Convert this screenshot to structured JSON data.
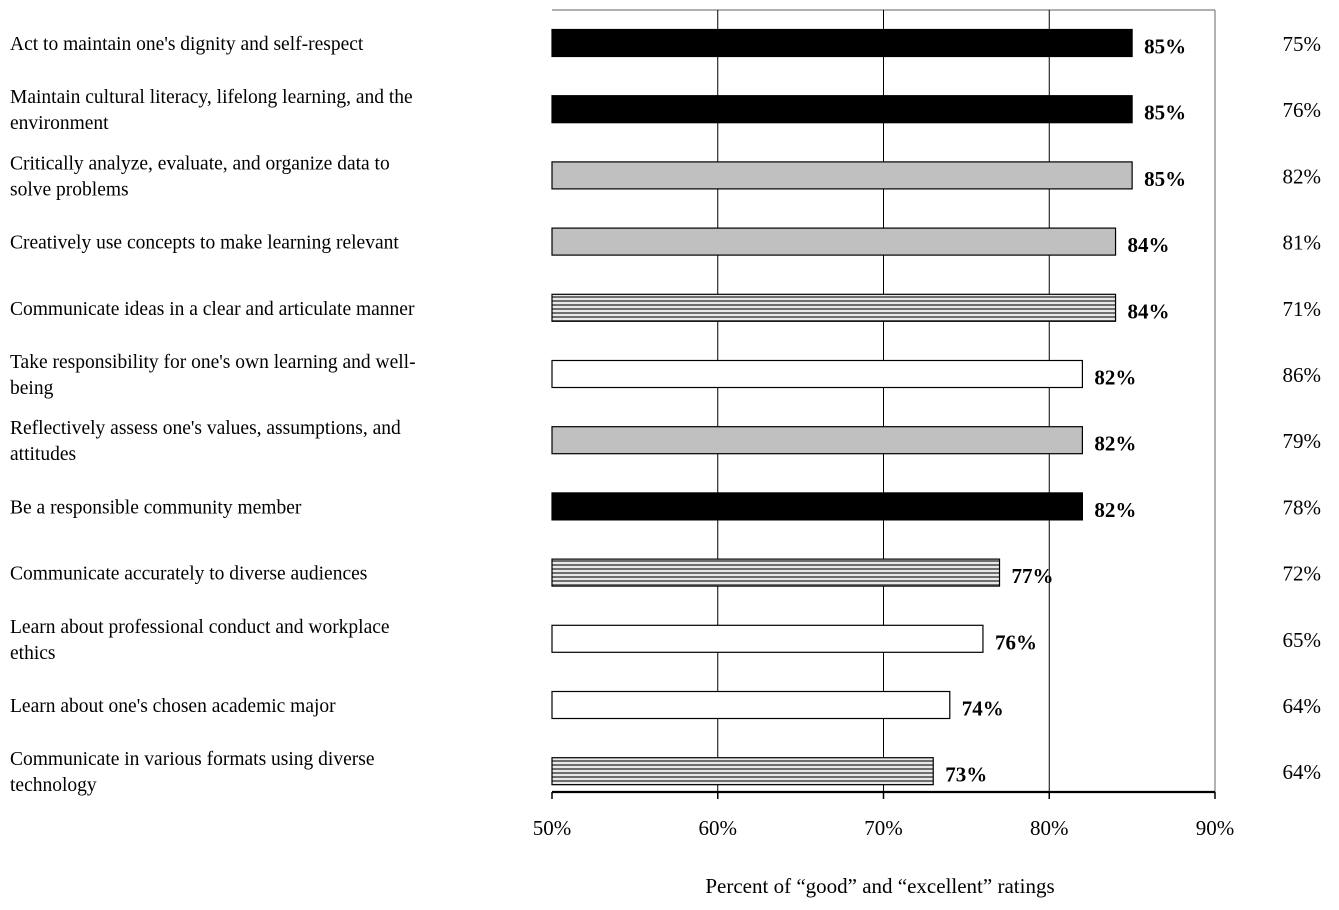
{
  "chart_data": {
    "type": "bar",
    "orientation": "horizontal",
    "xlabel": "Percent of “good” and “excellent” ratings",
    "xlim": [
      50,
      90
    ],
    "xticks": [
      "50%",
      "60%",
      "70%",
      "80%",
      "90%"
    ],
    "grid": true,
    "categories": [
      "Act to maintain one's dignity and self-respect",
      "Maintain cultural literacy, lifelong learning, and the environment",
      "Critically analyze, evaluate, and organize data to solve problems",
      "Creatively use concepts to make learning relevant",
      "Communicate ideas in a clear and articulate manner",
      "Take responsibility for one's own learning and well-being",
      "Reflectively assess one's values, assumptions, and attitudes",
      "Be a responsible community member",
      "Communicate accurately to diverse audiences",
      "Learn about professional conduct and workplace ethics",
      "Learn about one's chosen academic major",
      "Communicate in various formats using diverse technology"
    ],
    "category_lines": [
      [
        "Act to maintain one's dignity and self-respect"
      ],
      [
        "Maintain cultural literacy, lifelong learning, and the",
        "environment"
      ],
      [
        "Critically analyze, evaluate, and organize data to",
        "solve problems"
      ],
      [
        "Creatively use concepts to make learning relevant"
      ],
      [
        "Communicate ideas in a clear and articulate manner"
      ],
      [
        "Take responsibility for one's own learning and well-",
        "being"
      ],
      [
        "Reflectively assess one's values, assumptions, and",
        "attitudes"
      ],
      [
        "Be a responsible community member"
      ],
      [
        "Communicate accurately to diverse audiences"
      ],
      [
        "Learn about professional conduct and workplace",
        "ethics"
      ],
      [
        "Learn about one's chosen academic major"
      ],
      [
        "Communicate in various formats using diverse",
        "technology"
      ]
    ],
    "values": [
      85,
      85,
      85,
      84,
      84,
      82,
      82,
      82,
      77,
      76,
      74,
      73
    ],
    "value_labels": [
      "85%",
      "85%",
      "85%",
      "84%",
      "84%",
      "82%",
      "82%",
      "82%",
      "77%",
      "76%",
      "74%",
      "73%"
    ],
    "fill_styles": [
      "black",
      "black",
      "gray",
      "gray",
      "striped",
      "white",
      "gray",
      "black",
      "striped",
      "white",
      "white",
      "striped"
    ],
    "comparison_labels": [
      "75%",
      "76%",
      "82%",
      "81%",
      "71%",
      "86%",
      "79%",
      "78%",
      "72%",
      "65%",
      "64%",
      "64%"
    ],
    "colors": {
      "black": "#000000",
      "gray": "#c0c0c0",
      "white": "#ffffff",
      "stripe_dark": "#6e6e6e",
      "stripe_light": "#e8e8e8",
      "axis": "#000000",
      "grid": "#000000",
      "frame": "#808080"
    }
  }
}
